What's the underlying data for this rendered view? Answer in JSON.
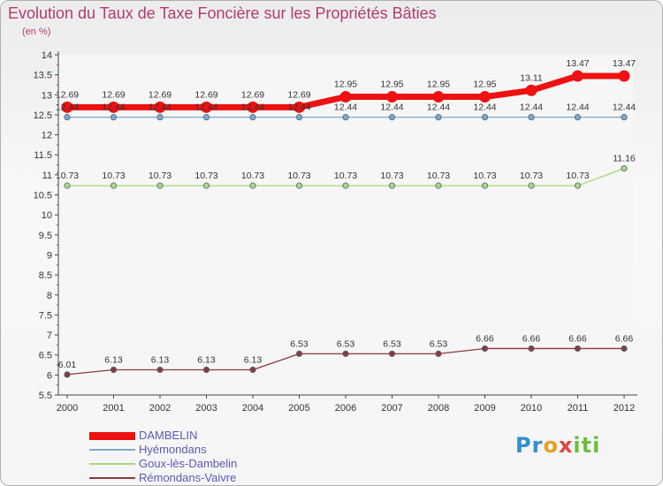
{
  "chart_data": {
    "type": "line",
    "title": "Evolution du Taux de Taxe Foncière sur les Propriétés Bâties",
    "subtitle": "(en %)",
    "xlabel": "",
    "ylabel": "",
    "ylim": [
      5.5,
      14
    ],
    "yticks": [
      "5.5",
      "6",
      "6.5",
      "7",
      "7.5",
      "8",
      "8.5",
      "9",
      "9.5",
      "10",
      "10.5",
      "11",
      "11.5",
      "12",
      "12.5",
      "13",
      "13.5",
      "14"
    ],
    "categories": [
      "2000",
      "2001",
      "2002",
      "2003",
      "2004",
      "2005",
      "2006",
      "2007",
      "2008",
      "2009",
      "2010",
      "2011",
      "2012"
    ],
    "series": [
      {
        "name": "DAMBELIN",
        "color": "#ee1111",
        "bold": true,
        "values": [
          12.69,
          12.69,
          12.69,
          12.69,
          12.69,
          12.69,
          12.95,
          12.95,
          12.95,
          12.95,
          13.11,
          13.47,
          13.47
        ],
        "labels": [
          "12.69",
          "12.69",
          "12.69",
          "12.69",
          "12.69",
          "12.69",
          "12.95",
          "12.95",
          "12.95",
          "12.95",
          "13.11",
          "13.47",
          "13.47"
        ]
      },
      {
        "name": "Hyémondans",
        "color": "#7fa8c8",
        "bold": false,
        "values": [
          12.44,
          12.44,
          12.44,
          12.44,
          12.44,
          12.44,
          12.44,
          12.44,
          12.44,
          12.44,
          12.44,
          12.44,
          12.44
        ],
        "labels": [
          "12.44",
          "12.44",
          "12.44",
          "12.44",
          "12.44",
          "12.44",
          "12.44",
          "12.44",
          "12.44",
          "12.44",
          "12.44",
          "12.44",
          "12.44"
        ]
      },
      {
        "name": "Goux-lès-Dambelin",
        "color": "#a8d878",
        "bold": false,
        "values": [
          10.73,
          10.73,
          10.73,
          10.73,
          10.73,
          10.73,
          10.73,
          10.73,
          10.73,
          10.73,
          10.73,
          10.73,
          11.16
        ],
        "labels": [
          "10.73",
          "10.73",
          "10.73",
          "10.73",
          "10.73",
          "10.73",
          "10.73",
          "10.73",
          "10.73",
          "10.73",
          "10.73",
          "10.73",
          "11.16"
        ]
      },
      {
        "name": "Rémondans-Vaivre",
        "color": "#8b3a3a",
        "bold": false,
        "values": [
          6.01,
          6.13,
          6.13,
          6.13,
          6.13,
          6.53,
          6.53,
          6.53,
          6.53,
          6.66,
          6.66,
          6.66,
          6.66
        ],
        "labels": [
          "6.01",
          "6.13",
          "6.13",
          "6.13",
          "6.13",
          "6.53",
          "6.53",
          "6.53",
          "6.53",
          "6.66",
          "6.66",
          "6.66",
          "6.66"
        ]
      }
    ]
  },
  "branding": {
    "logo_text": [
      "Pr",
      "o",
      "x",
      "iti"
    ]
  }
}
